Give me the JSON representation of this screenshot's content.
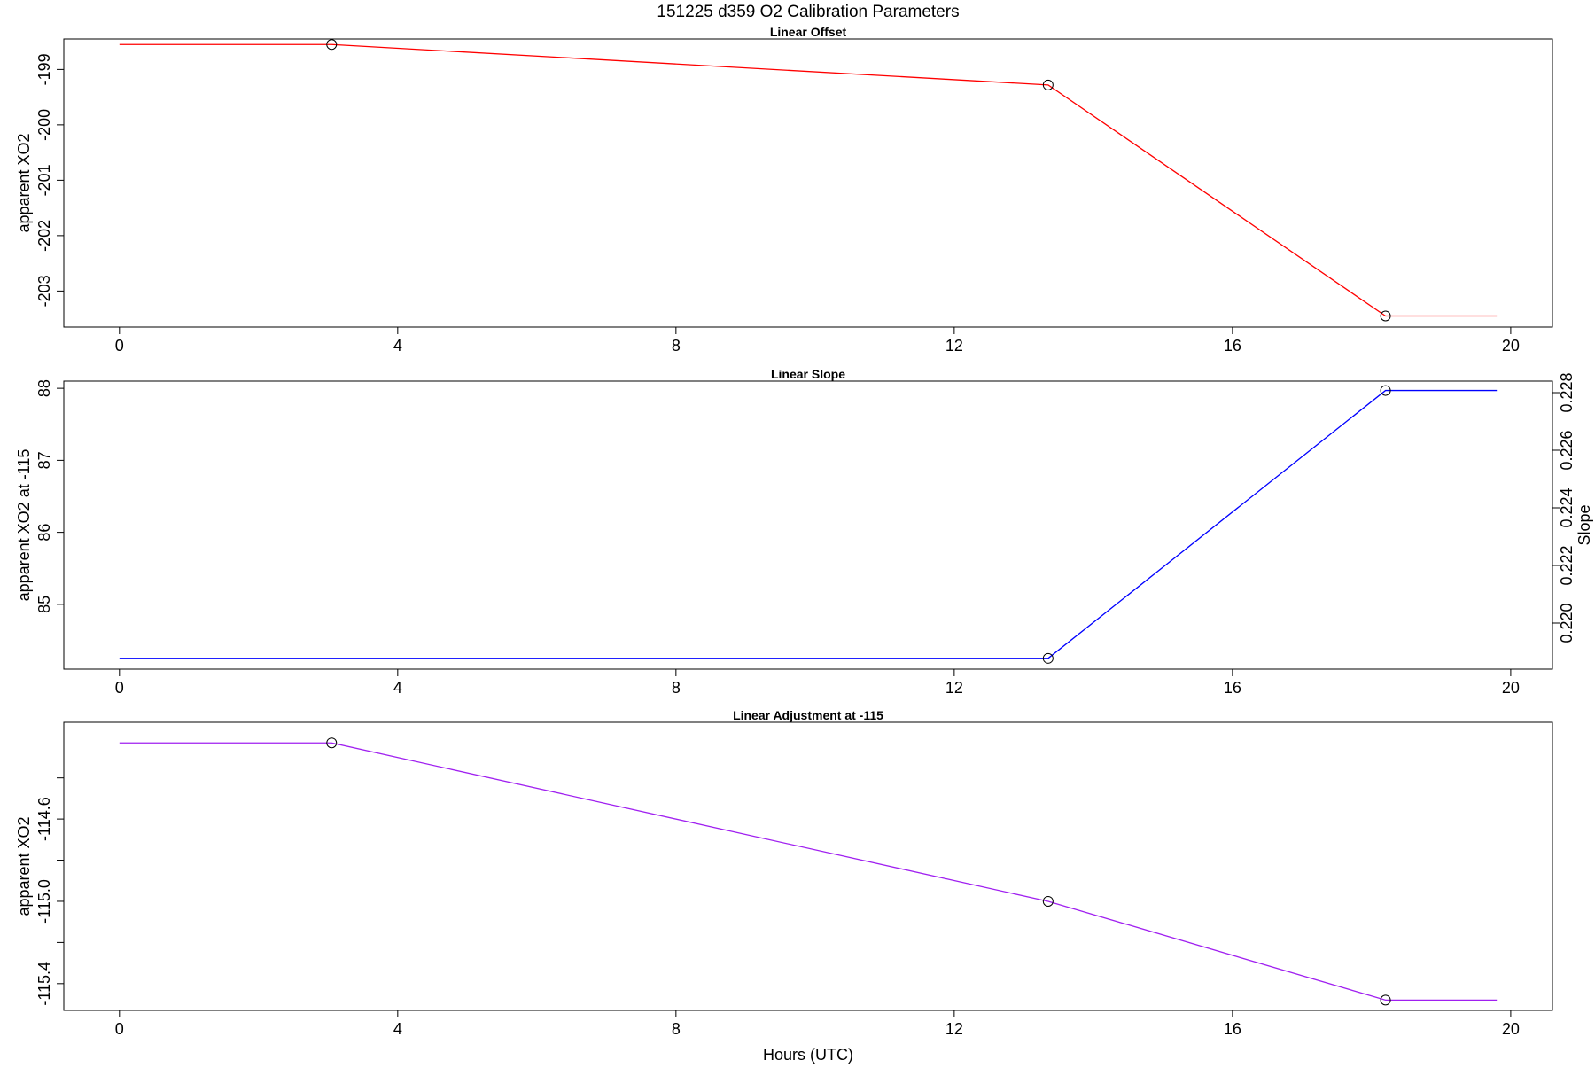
{
  "title": "151225   d359   O2 Calibration Parameters",
  "xlabel": "Hours (UTC)",
  "colors": {
    "offset": "#ff0000",
    "slope": "#0000ff",
    "adjustment": "#a020f0",
    "axes": "#000000"
  },
  "chart_data": [
    {
      "type": "line",
      "title": "Linear Offset",
      "ylabel": "apparent XO2",
      "xlim": [
        -0.8,
        20.6
      ],
      "ylim": [
        -203.65,
        -198.45
      ],
      "x_ticks": [
        "0",
        "4",
        "8",
        "12",
        "16",
        "20"
      ],
      "x_tick_values": [
        0,
        4,
        8,
        12,
        16,
        20
      ],
      "y_ticks": [
        "-203",
        "-202",
        "-201",
        "-200",
        "-199"
      ],
      "y_tick_values": [
        -203,
        -202,
        -201,
        -200,
        -199
      ],
      "series": [
        {
          "x": [
            0,
            3.05,
            13.35,
            18.2,
            19.8
          ],
          "y": [
            -198.55,
            -198.55,
            -199.28,
            -203.45,
            -203.45
          ],
          "markers": [
            [
              3.05,
              -198.55
            ],
            [
              13.35,
              -199.28
            ],
            [
              18.2,
              -203.45
            ]
          ]
        }
      ]
    },
    {
      "type": "line",
      "title": "Linear Slope",
      "ylabel": "apparent XO2 at -115",
      "y2label": "Slope",
      "xlim": [
        -0.8,
        20.6
      ],
      "ylim": [
        84.1,
        88.1
      ],
      "y2lim": [
        0.2184,
        0.2284
      ],
      "x_ticks": [
        "0",
        "4",
        "8",
        "12",
        "16",
        "20"
      ],
      "x_tick_values": [
        0,
        4,
        8,
        12,
        16,
        20
      ],
      "y_ticks": [
        "85",
        "86",
        "87",
        "88"
      ],
      "y_tick_values": [
        85,
        86,
        87,
        88
      ],
      "y2_ticks": [
        "0.220",
        "0.222",
        "0.224",
        "0.226",
        "0.228"
      ],
      "y2_tick_values": [
        0.22,
        0.222,
        0.224,
        0.226,
        0.228
      ],
      "series": [
        {
          "x": [
            0,
            13.35,
            18.2,
            19.8
          ],
          "y": [
            84.25,
            84.25,
            87.97,
            87.97
          ],
          "markers": [
            [
              13.35,
              84.25
            ],
            [
              18.2,
              87.97
            ]
          ]
        }
      ]
    },
    {
      "type": "line",
      "title": "Linear Adjustment at -115",
      "ylabel": "apparent XO2",
      "xlim": [
        -0.8,
        20.6
      ],
      "ylim": [
        -115.53,
        -114.13
      ],
      "x_ticks": [
        "0",
        "4",
        "8",
        "12",
        "16",
        "20"
      ],
      "x_tick_values": [
        0,
        4,
        8,
        12,
        16,
        20
      ],
      "y_ticks": [
        "-115.4",
        "-115.0",
        "-114.6"
      ],
      "y_tick_values": [
        -115.4,
        -115.0,
        -114.6
      ],
      "y_minor_tick_values": [
        -115.2,
        -114.8,
        -114.4
      ],
      "series": [
        {
          "x": [
            0,
            3.05,
            13.35,
            18.2,
            19.8
          ],
          "y": [
            -114.23,
            -114.23,
            -115.0,
            -115.48,
            -115.48
          ],
          "markers": [
            [
              3.05,
              -114.23
            ],
            [
              13.35,
              -115.0
            ],
            [
              18.2,
              -115.48
            ]
          ]
        }
      ]
    }
  ]
}
